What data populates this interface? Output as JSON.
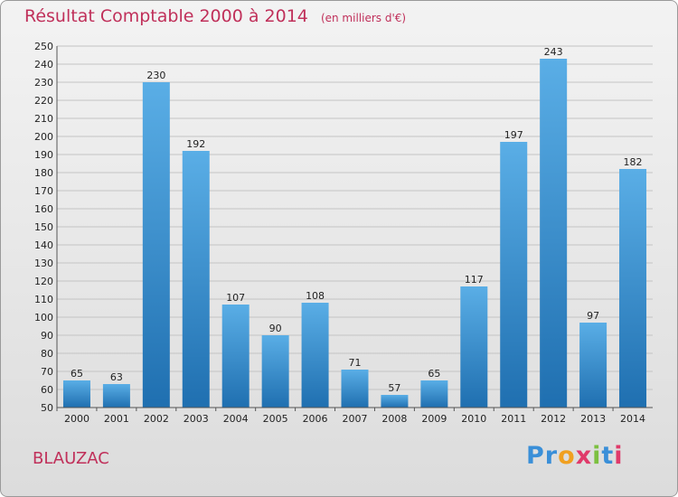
{
  "header": {
    "title": "Résultat Comptable 2000 à 2014",
    "subtitle": "(en milliers d'€)"
  },
  "footer": {
    "town": "BLAUZAC",
    "logo_letters": [
      "P",
      "r",
      "o",
      "x",
      "i",
      "t",
      "i"
    ]
  },
  "colors": {
    "title": "#c0305a",
    "bar_light": "#5aaee6",
    "bar_dark": "#1f6fb0",
    "logo": [
      "#3a8fd8",
      "#3a8fd8",
      "#f0a020",
      "#e03a6a",
      "#7cc040",
      "#3a8fd8",
      "#e03a6a"
    ]
  },
  "chart_data": {
    "type": "bar",
    "title": "Résultat Comptable 2000 à 2014",
    "subtitle": "(en milliers d'€)",
    "categories": [
      "2000",
      "2001",
      "2002",
      "2003",
      "2004",
      "2005",
      "2006",
      "2007",
      "2008",
      "2009",
      "2010",
      "2011",
      "2012",
      "2013",
      "2014"
    ],
    "values": [
      65,
      63,
      230,
      192,
      107,
      90,
      108,
      71,
      57,
      65,
      117,
      197,
      243,
      97,
      182
    ],
    "ylim": [
      50,
      250
    ],
    "yticks": [
      50,
      60,
      70,
      80,
      90,
      100,
      110,
      120,
      130,
      140,
      150,
      160,
      170,
      180,
      190,
      200,
      210,
      220,
      230,
      240,
      250
    ],
    "grid": true,
    "xlabel": "",
    "ylabel": ""
  }
}
